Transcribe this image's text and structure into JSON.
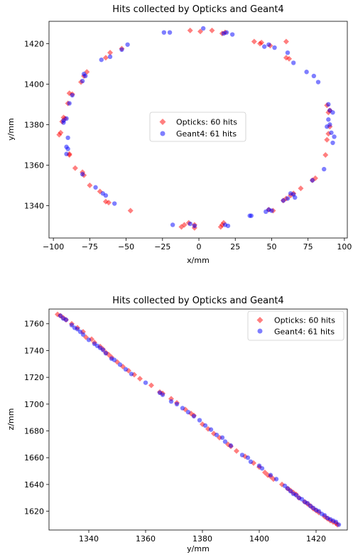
{
  "chart_data": [
    {
      "type": "scatter",
      "title": "Hits collected by Opticks and Geant4",
      "xlabel": "x/mm",
      "ylabel": "y/mm",
      "xlim": [
        -103,
        102
      ],
      "ylim": [
        1324,
        1431
      ],
      "xticks": [
        -100,
        -75,
        -50,
        -25,
        0,
        25,
        50,
        75,
        100
      ],
      "yticks": [
        1340,
        1360,
        1380,
        1400,
        1420
      ],
      "legend_position": "center",
      "series": [
        {
          "name": "Opticks: 60 hits",
          "color": "#ff0000",
          "marker": "diamond",
          "points": [
            [
              -6,
              1426.5
            ],
            [
              1,
              1426
            ],
            [
              9,
              1426.5
            ],
            [
              16,
              1425
            ],
            [
              18,
              1425.5
            ],
            [
              38,
              1421
            ],
            [
              42,
              1420
            ],
            [
              49,
              1419
            ],
            [
              60,
              1413
            ],
            [
              62,
              1412.5
            ],
            [
              -61,
              1415.5
            ],
            [
              -64,
              1413
            ],
            [
              -53,
              1417.5
            ],
            [
              -77,
              1406
            ],
            [
              -79,
              1404
            ],
            [
              -81,
              1401
            ],
            [
              -89,
              1395.5
            ],
            [
              -87,
              1395
            ],
            [
              -90,
              1390.5
            ],
            [
              -92,
              1383
            ],
            [
              -94,
              1381.5
            ],
            [
              -95,
              1376
            ],
            [
              -96,
              1375
            ],
            [
              -89,
              1365.5
            ],
            [
              -85,
              1358.5
            ],
            [
              -80,
              1356.5
            ],
            [
              -79,
              1355
            ],
            [
              -75,
              1350
            ],
            [
              -68,
              1347
            ],
            [
              -64,
              1342
            ],
            [
              -47,
              1337.5
            ],
            [
              -12,
              1329.5
            ],
            [
              -10,
              1330.5
            ],
            [
              -7,
              1331.5
            ],
            [
              -3,
              1330.5
            ],
            [
              -3,
              1329
            ],
            [
              15,
              1329.5
            ],
            [
              16,
              1330.5
            ],
            [
              17,
              1331.5
            ],
            [
              48,
              1338
            ],
            [
              51,
              1337.5
            ],
            [
              58,
              1342.5
            ],
            [
              60,
              1343.5
            ],
            [
              63,
              1345
            ],
            [
              65,
              1346
            ],
            [
              70,
              1348.5
            ],
            [
              78,
              1352.5
            ],
            [
              80,
              1353.5
            ],
            [
              87,
              1365
            ],
            [
              88,
              1372.5
            ],
            [
              89,
              1375.5
            ],
            [
              90,
              1379
            ],
            [
              88,
              1389.5
            ],
            [
              89,
              1386
            ],
            [
              90,
              1387
            ],
            [
              60,
              1421
            ],
            [
              -89,
              1365
            ],
            [
              -93,
              1383.5
            ],
            [
              43,
              1420.5
            ],
            [
              -62,
              1341.5
            ]
          ]
        },
        {
          "name": "Geant4: 61 hits",
          "color": "#0000ff",
          "marker": "circle",
          "points": [
            [
              -24,
              1425.5
            ],
            [
              -20,
              1425.5
            ],
            [
              3,
              1427.5
            ],
            [
              19,
              1425.5
            ],
            [
              23,
              1424.5
            ],
            [
              48,
              1419.5
            ],
            [
              52,
              1418
            ],
            [
              61,
              1415.5
            ],
            [
              65,
              1410.5
            ],
            [
              74,
              1406
            ],
            [
              79,
              1404
            ],
            [
              82,
              1401
            ],
            [
              89,
              1390
            ],
            [
              90,
              1387
            ],
            [
              92,
              1386
            ],
            [
              89,
              1382.5
            ],
            [
              90,
              1380
            ],
            [
              91,
              1376
            ],
            [
              93,
              1374
            ],
            [
              92,
              1371
            ],
            [
              -49,
              1419.5
            ],
            [
              -53,
              1417
            ],
            [
              -61,
              1413.5
            ],
            [
              -67,
              1412
            ],
            [
              -78,
              1404
            ],
            [
              -80,
              1401.5
            ],
            [
              -87,
              1394.5
            ],
            [
              -89,
              1390.5
            ],
            [
              -91,
              1383
            ],
            [
              -93,
              1381
            ],
            [
              -90,
              1373.5
            ],
            [
              -91,
              1369
            ],
            [
              -90,
              1368
            ],
            [
              -91,
              1365.5
            ],
            [
              -80,
              1355.5
            ],
            [
              -71,
              1349
            ],
            [
              -66,
              1346
            ],
            [
              -64,
              1345
            ],
            [
              -58,
              1341
            ],
            [
              -18,
              1330.5
            ],
            [
              -6,
              1331
            ],
            [
              -3,
              1330
            ],
            [
              18,
              1330.5
            ],
            [
              20,
              1330
            ],
            [
              35,
              1335
            ],
            [
              36,
              1335
            ],
            [
              46,
              1337
            ],
            [
              48,
              1338
            ],
            [
              50,
              1337.5
            ],
            [
              58,
              1342.5
            ],
            [
              61,
              1343.5
            ],
            [
              63,
              1346
            ],
            [
              65,
              1345.5
            ],
            [
              66,
              1344
            ],
            [
              78,
              1352.5
            ],
            [
              86,
              1358
            ],
            [
              88,
              1379
            ],
            [
              -93,
              1382
            ],
            [
              -79,
              1405
            ],
            [
              17,
              1425
            ],
            [
              45,
              1418.5
            ]
          ]
        }
      ]
    },
    {
      "type": "scatter",
      "title": "Hits collected by Opticks and Geant4",
      "xlabel": "y/mm",
      "ylabel": "z/mm",
      "xlim": [
        1326,
        1431
      ],
      "ylim": [
        1606,
        1771
      ],
      "xticks": [
        1340,
        1360,
        1380,
        1400,
        1420
      ],
      "yticks": [
        1620,
        1640,
        1660,
        1680,
        1700,
        1720,
        1740,
        1760
      ],
      "legend_position": "top-right",
      "series": [
        {
          "name": "Opticks: 60 hits",
          "color": "#ff0000",
          "marker": "diamond",
          "points": [
            [
              1329,
              1767
            ],
            [
              1330,
              1766
            ],
            [
              1331,
              1764.5
            ],
            [
              1332,
              1763
            ],
            [
              1334,
              1760
            ],
            [
              1336,
              1757
            ],
            [
              1338,
              1754
            ],
            [
              1341,
              1748.5
            ],
            [
              1342,
              1746
            ],
            [
              1344,
              1743
            ],
            [
              1345,
              1741
            ],
            [
              1346,
              1738.5
            ],
            [
              1348,
              1735
            ],
            [
              1350,
              1731.5
            ],
            [
              1352,
              1728
            ],
            [
              1354,
              1725
            ],
            [
              1356,
              1722
            ],
            [
              1358,
              1719
            ],
            [
              1365,
              1709
            ],
            [
              1366,
              1708
            ],
            [
              1371,
              1701
            ],
            [
              1374,
              1696
            ],
            [
              1376,
              1693
            ],
            [
              1377,
              1691.5
            ],
            [
              1380,
              1685
            ],
            [
              1382,
              1681.5
            ],
            [
              1384,
              1678
            ],
            [
              1386,
              1675
            ],
            [
              1389,
              1670
            ],
            [
              1390,
              1668.5
            ],
            [
              1395,
              1661
            ],
            [
              1398,
              1656
            ],
            [
              1400,
              1653
            ],
            [
              1402,
              1649
            ],
            [
              1404,
              1646
            ],
            [
              1405,
              1644
            ],
            [
              1408,
              1640
            ],
            [
              1410,
              1637
            ],
            [
              1412,
              1634
            ],
            [
              1413,
              1632.5
            ],
            [
              1414,
              1630
            ],
            [
              1416,
              1627
            ],
            [
              1417,
              1625.5
            ],
            [
              1418,
              1624
            ],
            [
              1419,
              1622
            ],
            [
              1420,
              1620.5
            ],
            [
              1421,
              1619
            ],
            [
              1423,
              1616
            ],
            [
              1424,
              1614.5
            ],
            [
              1425,
              1613
            ],
            [
              1426,
              1612
            ],
            [
              1427,
              1611
            ],
            [
              1427.5,
              1610
            ],
            [
              1339,
              1750
            ],
            [
              1347,
              1737
            ],
            [
              1362,
              1714
            ],
            [
              1369,
              1704
            ],
            [
              1392,
              1665
            ],
            [
              1403,
              1647
            ],
            [
              1411,
              1635.5
            ]
          ]
        },
        {
          "name": "Geant4: 61 hits",
          "color": "#0000ff",
          "marker": "circle",
          "points": [
            [
              1330,
              1766
            ],
            [
              1331,
              1764
            ],
            [
              1332,
              1763
            ],
            [
              1334,
              1759
            ],
            [
              1336,
              1756
            ],
            [
              1337,
              1754
            ],
            [
              1340,
              1748
            ],
            [
              1342,
              1745
            ],
            [
              1343,
              1743.5
            ],
            [
              1345,
              1740.5
            ],
            [
              1346,
              1738
            ],
            [
              1349,
              1733
            ],
            [
              1351,
              1729.5
            ],
            [
              1353,
              1726
            ],
            [
              1355,
              1722.5
            ],
            [
              1365,
              1708.5
            ],
            [
              1369,
              1702
            ],
            [
              1371,
              1700
            ],
            [
              1373,
              1697
            ],
            [
              1375,
              1694
            ],
            [
              1377,
              1691
            ],
            [
              1381,
              1684
            ],
            [
              1383,
              1681
            ],
            [
              1385,
              1677
            ],
            [
              1387,
              1675
            ],
            [
              1390,
              1669
            ],
            [
              1394,
              1662
            ],
            [
              1397,
              1657
            ],
            [
              1401,
              1652
            ],
            [
              1404,
              1647
            ],
            [
              1406,
              1644
            ],
            [
              1409,
              1639
            ],
            [
              1410,
              1637
            ],
            [
              1411,
              1635
            ],
            [
              1413,
              1632
            ],
            [
              1414,
              1630
            ],
            [
              1415,
              1629
            ],
            [
              1416,
              1627
            ],
            [
              1417,
              1626
            ],
            [
              1418,
              1624
            ],
            [
              1419,
              1622.5
            ],
            [
              1420,
              1621
            ],
            [
              1421,
              1620
            ],
            [
              1422,
              1618
            ],
            [
              1424,
              1615
            ],
            [
              1425,
              1614
            ],
            [
              1426,
              1613
            ],
            [
              1427,
              1612
            ],
            [
              1428,
              1610
            ],
            [
              1335,
              1757
            ],
            [
              1338,
              1752
            ],
            [
              1344,
              1742
            ],
            [
              1348,
              1734
            ],
            [
              1360,
              1716
            ],
            [
              1366,
              1707
            ],
            [
              1379,
              1688
            ],
            [
              1388,
              1672
            ],
            [
              1396,
              1660
            ],
            [
              1400,
              1654
            ],
            [
              1412,
              1633
            ],
            [
              1423,
              1617
            ]
          ]
        }
      ]
    }
  ]
}
